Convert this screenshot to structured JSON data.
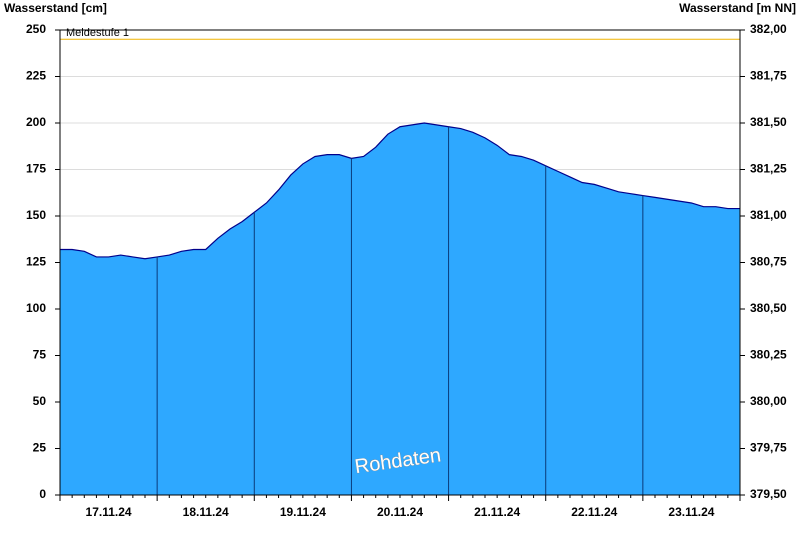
{
  "chart_data": {
    "type": "area",
    "y_label": "Wasserstand [cm]",
    "y2_label": "Wasserstand [m NN]",
    "categories": [
      null,
      null,
      null,
      null,
      "17.11.24",
      null,
      null,
      null,
      null,
      null,
      null,
      null,
      "18.11.24",
      null,
      null,
      null,
      null,
      null,
      null,
      null,
      "19.11.24",
      null,
      null,
      null,
      null,
      null,
      null,
      null,
      "20.11.24",
      null,
      null,
      null,
      null,
      null,
      null,
      null,
      "21.11.24",
      null,
      null,
      null,
      null,
      null,
      null,
      null,
      "22.11.24",
      null,
      null,
      null,
      null,
      null,
      null,
      null,
      "23.11.24",
      null,
      null,
      null,
      null
    ],
    "values": [
      132,
      132,
      131,
      128,
      128,
      129,
      128,
      127,
      128,
      129,
      131,
      132,
      132,
      138,
      143,
      147,
      152,
      157,
      164,
      172,
      178,
      182,
      183,
      183,
      181,
      182,
      187,
      194,
      198,
      199,
      200,
      199,
      198,
      197,
      195,
      192,
      188,
      183,
      182,
      180,
      177,
      174,
      171,
      168,
      167,
      165,
      163,
      162,
      161,
      160,
      159,
      158,
      157,
      155,
      155,
      154,
      154
    ],
    "color": "#2ea8ff",
    "line_color": "#00008b",
    "ylim": [
      0,
      250
    ],
    "yticks": [
      0,
      25,
      50,
      75,
      100,
      125,
      150,
      175,
      200,
      225,
      250
    ],
    "y2lim": [
      379.5,
      382
    ],
    "y2ticks": [
      {
        "value": 379.5,
        "label": "379,50"
      },
      {
        "value": 379.75,
        "label": "379,75"
      },
      {
        "value": 380,
        "label": "380,00"
      },
      {
        "value": 380.25,
        "label": "380,25"
      },
      {
        "value": 380.5,
        "label": "380,50"
      },
      {
        "value": 380.75,
        "label": "380,75"
      },
      {
        "value": 381,
        "label": "381,00"
      },
      {
        "value": 381.25,
        "label": "381,25"
      },
      {
        "value": 381.5,
        "label": "381,50"
      },
      {
        "value": 381.75,
        "label": "381,75"
      },
      {
        "value": 382,
        "label": "382,00"
      }
    ],
    "grid": true,
    "thresholds": [
      {
        "label": "Meldestufe 1",
        "value": 245,
        "color": "#f0b400"
      }
    ],
    "watermark": "Rohdaten"
  }
}
